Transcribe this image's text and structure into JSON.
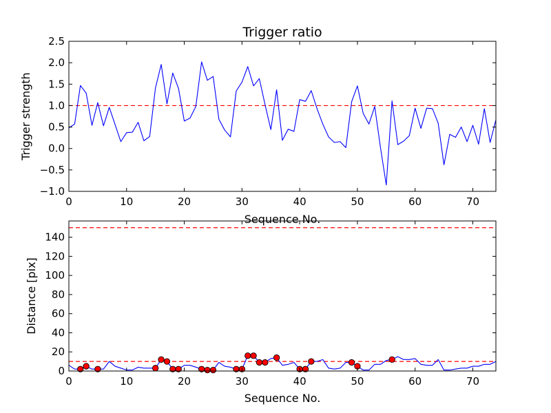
{
  "chart_data": [
    {
      "type": "line",
      "title": "Trigger ratio",
      "xlabel": "Sequence No.",
      "ylabel": "Trigger strength",
      "xlim": [
        0,
        74
      ],
      "ylim": [
        -1.0,
        2.5
      ],
      "xticks": [
        0,
        10,
        20,
        30,
        40,
        50,
        60,
        70
      ],
      "yticks": [
        -1.0,
        -0.5,
        0.0,
        0.5,
        1.0,
        1.5,
        2.0,
        2.5
      ],
      "ytick_labels": [
        "−1.0",
        "−0.5",
        "0.0",
        "0.5",
        "1.0",
        "1.5",
        "2.0",
        "2.5"
      ],
      "series": [
        {
          "name": "trigger strength",
          "color": "#0000ff",
          "x": [
            0,
            1,
            2,
            3,
            4,
            5,
            6,
            7,
            8,
            9,
            10,
            11,
            12,
            13,
            14,
            15,
            16,
            17,
            18,
            19,
            20,
            21,
            22,
            23,
            24,
            25,
            26,
            27,
            28,
            29,
            30,
            31,
            32,
            33,
            34,
            35,
            36,
            37,
            38,
            39,
            40,
            41,
            42,
            43,
            44,
            45,
            46,
            47,
            48,
            49,
            50,
            51,
            52,
            53,
            54,
            55,
            56,
            57,
            58,
            59,
            60,
            61,
            62,
            63,
            64,
            65,
            66,
            67,
            68,
            69,
            70,
            71,
            72,
            73,
            74
          ],
          "values": [
            0.48,
            0.57,
            1.47,
            1.29,
            0.54,
            1.07,
            0.53,
            0.96,
            0.56,
            0.16,
            0.37,
            0.38,
            0.61,
            0.18,
            0.28,
            1.41,
            1.96,
            1.04,
            1.76,
            1.4,
            0.64,
            0.71,
            0.98,
            2.02,
            1.59,
            1.68,
            0.68,
            0.43,
            0.27,
            1.34,
            1.55,
            1.91,
            1.46,
            1.63,
            1.02,
            0.44,
            1.37,
            0.19,
            0.45,
            0.4,
            1.14,
            1.1,
            1.35,
            0.93,
            0.57,
            0.27,
            0.14,
            0.16,
            0.02,
            1.09,
            1.46,
            0.82,
            0.57,
            0.98,
            0.02,
            -0.85,
            1.11,
            0.09,
            0.17,
            0.3,
            0.94,
            0.47,
            0.94,
            0.93,
            0.59,
            -0.38,
            0.33,
            0.26,
            0.5,
            0.16,
            0.54,
            0.1,
            0.93,
            0.14,
            0.67
          ]
        }
      ],
      "threshold": {
        "y": 1.0,
        "color": "#ff0000",
        "style": "dashed"
      }
    },
    {
      "type": "line",
      "title": "",
      "xlabel": "Sequence No.",
      "ylabel": "Distance [pix]",
      "xlim": [
        0,
        74
      ],
      "ylim": [
        0,
        157
      ],
      "xticks": [
        0,
        10,
        20,
        30,
        40,
        50,
        60,
        70
      ],
      "yticks": [
        0,
        20,
        40,
        60,
        80,
        100,
        120,
        140
      ],
      "series": [
        {
          "name": "distance",
          "color": "#0000ff",
          "x": [
            0,
            1,
            2,
            3,
            4,
            5,
            6,
            7,
            8,
            9,
            10,
            11,
            12,
            13,
            14,
            15,
            16,
            17,
            18,
            19,
            20,
            21,
            22,
            23,
            24,
            25,
            26,
            27,
            28,
            29,
            30,
            31,
            32,
            33,
            34,
            35,
            36,
            37,
            38,
            39,
            40,
            41,
            42,
            43,
            44,
            45,
            46,
            47,
            48,
            49,
            50,
            51,
            52,
            53,
            54,
            55,
            56,
            57,
            58,
            59,
            60,
            61,
            62,
            63,
            64,
            65,
            66,
            67,
            68,
            69,
            70,
            71,
            72,
            73,
            74
          ],
          "values": [
            6,
            2,
            2,
            5,
            2,
            2,
            2,
            10,
            5,
            3,
            1,
            1,
            4,
            3,
            3,
            3,
            12,
            10,
            2,
            2,
            6,
            6,
            4,
            2,
            1,
            1,
            9,
            5,
            4,
            2,
            2,
            16,
            16,
            9,
            9,
            13,
            14,
            6,
            7,
            9,
            2,
            2,
            10,
            10,
            12,
            3,
            2,
            3,
            9,
            9,
            5,
            1,
            1,
            7,
            7,
            11,
            12,
            15,
            12,
            12,
            13,
            7,
            6,
            6,
            12,
            1,
            1,
            2,
            3,
            3,
            5,
            5,
            7,
            7,
            10
          ]
        },
        {
          "name": "flagged points",
          "color": "#ff0000",
          "marker": "circle",
          "x": [
            2,
            3,
            5,
            15,
            16,
            17,
            18,
            19,
            23,
            24,
            25,
            29,
            30,
            31,
            32,
            33,
            34,
            36,
            40,
            41,
            42,
            49,
            50,
            56
          ],
          "values": [
            2,
            5,
            2,
            3,
            12,
            10,
            2,
            2,
            2,
            1,
            1,
            2,
            2,
            16,
            16,
            9,
            9,
            14,
            2,
            2,
            10,
            9,
            5,
            12
          ]
        }
      ],
      "thresholds": [
        {
          "y": 10,
          "color": "#ff0000",
          "style": "dashed"
        },
        {
          "y": 150,
          "color": "#ff0000",
          "style": "dashed"
        }
      ]
    }
  ]
}
